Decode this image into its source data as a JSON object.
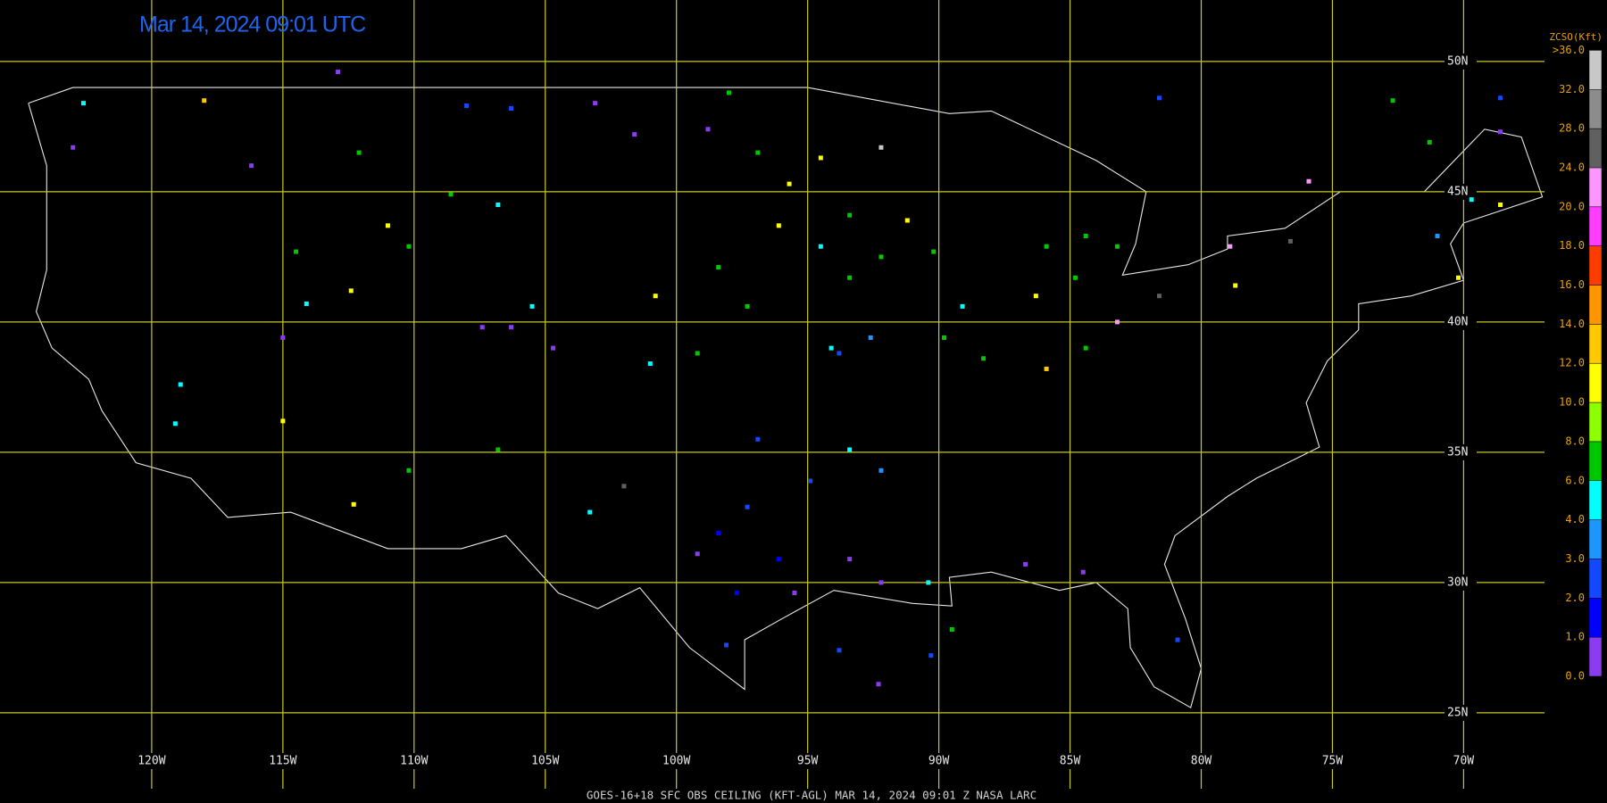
{
  "title": "Mar 14, 2024 09:01 UTC",
  "footer": "GOES-16+18  SFC OBS CEILING (KFT-AGL)   MAR 14, 2024 09:01 Z   NASA LARC",
  "map": {
    "lon_ticks": [
      {
        "value": -120,
        "label": "120W"
      },
      {
        "value": -115,
        "label": "115W"
      },
      {
        "value": -110,
        "label": "110W"
      },
      {
        "value": -105,
        "label": "105W"
      },
      {
        "value": -100,
        "label": "100W"
      },
      {
        "value": -95,
        "label": "95W"
      },
      {
        "value": -90,
        "label": "90W"
      },
      {
        "value": -85,
        "label": "85W"
      },
      {
        "value": -80,
        "label": "80W"
      },
      {
        "value": -75,
        "label": "75W"
      },
      {
        "value": -70,
        "label": "70W"
      }
    ],
    "lat_ticks": [
      {
        "value": 50,
        "label": "50N"
      },
      {
        "value": 45,
        "label": "45N"
      },
      {
        "value": 40,
        "label": "40N"
      },
      {
        "value": 35,
        "label": "35N"
      },
      {
        "value": 30,
        "label": "30N"
      },
      {
        "value": 25,
        "label": "25N"
      }
    ]
  },
  "legend": {
    "title": "ZCSO(Kft)",
    "top_label": ">36.0",
    "levels": [
      {
        "value": 0,
        "label": "0.0"
      },
      {
        "value": 1,
        "label": "1.0"
      },
      {
        "value": 2,
        "label": "2.0"
      },
      {
        "value": 3,
        "label": "3.0"
      },
      {
        "value": 4,
        "label": "4.0"
      },
      {
        "value": 6,
        "label": "6.0"
      },
      {
        "value": 8,
        "label": "8.0"
      },
      {
        "value": 10,
        "label": "10.0"
      },
      {
        "value": 12,
        "label": "12.0"
      },
      {
        "value": 14,
        "label": "14.0"
      },
      {
        "value": 16,
        "label": "16.0"
      },
      {
        "value": 18,
        "label": "18.0"
      },
      {
        "value": 20,
        "label": "20.0"
      },
      {
        "value": 24,
        "label": "24.0"
      },
      {
        "value": 28,
        "label": "28.0"
      },
      {
        "value": 32,
        "label": "32.0"
      }
    ],
    "colors": [
      "#8c3cf0",
      "#0000ff",
      "#1448ff",
      "#1e96ff",
      "#00ffff",
      "#00c800",
      "#8cff00",
      "#ffff00",
      "#ffc800",
      "#ff9600",
      "#ff3c00",
      "#ff3cff",
      "#ff96ff",
      "#606060",
      "#8c8c8c",
      "#c8c8c8"
    ]
  },
  "stations": [
    [
      -103.1,
      48.4,
      0.5
    ],
    [
      -101.6,
      47.2,
      0.5
    ],
    [
      -98.8,
      47.4,
      0.5
    ],
    [
      -108,
      48.3,
      2.5
    ],
    [
      -106.3,
      48.2,
      2.5
    ],
    [
      -116.2,
      46,
      0.5
    ],
    [
      -112.1,
      46.5,
      7
    ],
    [
      -108.6,
      44.9,
      7
    ],
    [
      -106.8,
      44.5,
      5
    ],
    [
      -114.5,
      42.7,
      7
    ],
    [
      -112.4,
      41.2,
      11
    ],
    [
      -106.3,
      39.8,
      0.5
    ],
    [
      -104.7,
      39,
      0.5
    ],
    [
      -107.4,
      39.8,
      0.5
    ],
    [
      -105.5,
      40.6,
      5
    ],
    [
      -118.9,
      37.6,
      5
    ],
    [
      -119.1,
      36.1,
      5
    ],
    [
      -112.3,
      33,
      11
    ],
    [
      -115,
      36.2,
      11
    ],
    [
      -110.2,
      34.3,
      7
    ],
    [
      -106.8,
      35.1,
      7
    ],
    [
      -102,
      33.7,
      25
    ],
    [
      -103.3,
      32.7,
      5
    ],
    [
      -97.3,
      32.9,
      2.5
    ],
    [
      -98.4,
      31.9,
      1.5
    ],
    [
      -96.1,
      30.9,
      1.5
    ],
    [
      -97.7,
      29.6,
      1.5
    ],
    [
      -98.1,
      27.6,
      2.5
    ],
    [
      -99.2,
      31.1,
      0.5
    ],
    [
      -95.5,
      29.6,
      0.5
    ],
    [
      -94.9,
      33.9,
      2.5
    ],
    [
      -96.9,
      35.5,
      2.5
    ],
    [
      -93.8,
      27.4,
      2.5
    ],
    [
      -93.4,
      30.9,
      0.5
    ],
    [
      -92.2,
      30,
      0.5
    ],
    [
      -90.4,
      30,
      5
    ],
    [
      -86.7,
      30.7,
      0.5
    ],
    [
      -84.5,
      30.4,
      0.5
    ],
    [
      -93.4,
      35.1,
      5
    ],
    [
      -92.2,
      34.3,
      3.5
    ],
    [
      -93.8,
      38.8,
      2.5
    ],
    [
      -92.6,
      39.4,
      3.5
    ],
    [
      -94.5,
      42.9,
      5
    ],
    [
      -93.4,
      41.7,
      7
    ],
    [
      -92.2,
      42.5,
      7
    ],
    [
      -95.7,
      45.3,
      11
    ],
    [
      -94.5,
      46.3,
      11
    ],
    [
      -93.4,
      44.1,
      7
    ],
    [
      -96.1,
      43.7,
      11
    ],
    [
      -91.2,
      43.9,
      11
    ],
    [
      -90.2,
      42.7,
      7
    ],
    [
      -92.2,
      46.7,
      33
    ],
    [
      -89.1,
      40.6,
      5
    ],
    [
      -89.8,
      39.4,
      7
    ],
    [
      -88.3,
      38.6,
      7
    ],
    [
      -85.9,
      42.9,
      7
    ],
    [
      -84.4,
      43.3,
      7
    ],
    [
      -86.3,
      41,
      11
    ],
    [
      -84.8,
      41.7,
      7
    ],
    [
      -83.2,
      42.9,
      7
    ],
    [
      -85.9,
      38.2,
      13
    ],
    [
      -84.4,
      39,
      7
    ],
    [
      -83.2,
      40,
      21
    ],
    [
      -81.6,
      41,
      26
    ],
    [
      -78.9,
      42.9,
      21
    ],
    [
      -78.7,
      41.4,
      11
    ],
    [
      -76.6,
      43.1,
      26
    ],
    [
      -71,
      43.3,
      3.5
    ],
    [
      -70.2,
      41.7,
      11
    ],
    [
      -68.6,
      44.5,
      11
    ],
    [
      -69.7,
      44.7,
      5
    ],
    [
      -71.3,
      46.9,
      7
    ],
    [
      -68.6,
      48.6,
      2.5
    ],
    [
      -68.6,
      47.3,
      0.5
    ],
    [
      -72.7,
      48.5,
      7
    ],
    [
      -75.9,
      45.4,
      21
    ],
    [
      -81.6,
      48.6,
      2.5
    ],
    [
      -100.8,
      41,
      11
    ],
    [
      -99.2,
      38.8,
      7
    ],
    [
      -101,
      38.4,
      5
    ],
    [
      -98.4,
      42.1,
      7
    ],
    [
      -97.3,
      40.6,
      7
    ],
    [
      -94.1,
      39,
      5
    ],
    [
      -98,
      48.8,
      7
    ],
    [
      -96.9,
      46.5,
      7
    ],
    [
      -118,
      48.5,
      13
    ],
    [
      -123,
      46.7,
      0.5
    ],
    [
      -122.6,
      48.4,
      5
    ],
    [
      -112.9,
      49.6,
      0.5
    ],
    [
      -114.1,
      40.7,
      5
    ],
    [
      -115,
      39.4,
      0.5
    ],
    [
      -110.2,
      42.9,
      7
    ],
    [
      -111,
      43.7,
      11
    ],
    [
      -80.9,
      27.8,
      2.5
    ],
    [
      -89.5,
      28.2,
      7
    ],
    [
      -90.3,
      27.2,
      2.5
    ],
    [
      -92.3,
      26.1,
      0.5
    ]
  ]
}
